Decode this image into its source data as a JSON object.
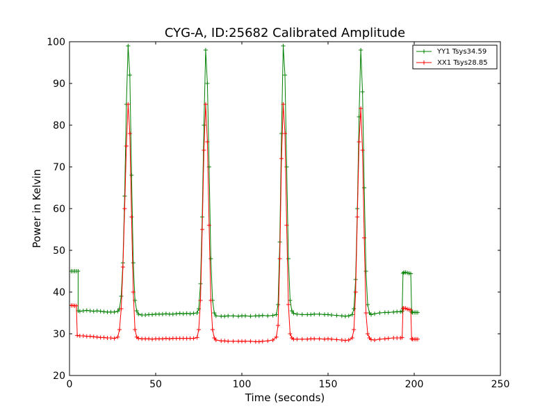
{
  "chart_data": {
    "type": "line",
    "title": "CYG-A, ID:25682 Calibrated Amplitude",
    "xlabel": "Time (seconds)",
    "ylabel": "Power in Kelvin",
    "xlim": [
      0,
      250
    ],
    "ylim": [
      20,
      100
    ],
    "xticks": [
      0,
      50,
      100,
      150,
      200,
      250
    ],
    "yticks": [
      20,
      30,
      40,
      50,
      60,
      70,
      80,
      90,
      100
    ],
    "grid": false,
    "legend_position": "top-right",
    "marker": "+",
    "series": [
      {
        "name": "YY1 Tsys34.59",
        "color": "#008000",
        "points": [
          [
            0,
            45
          ],
          [
            1,
            45
          ],
          [
            2,
            45
          ],
          [
            3,
            45
          ],
          [
            4,
            45
          ],
          [
            5,
            45
          ],
          [
            5,
            35.5
          ],
          [
            6,
            35.4
          ],
          [
            8,
            35.5
          ],
          [
            10,
            35.6
          ],
          [
            12,
            35.5
          ],
          [
            14,
            35.4
          ],
          [
            16,
            35.5
          ],
          [
            18,
            35.4
          ],
          [
            20,
            35.3
          ],
          [
            22,
            35.2
          ],
          [
            24,
            35.2
          ],
          [
            26,
            35.2
          ],
          [
            28,
            35.4
          ],
          [
            29,
            36
          ],
          [
            30,
            39
          ],
          [
            31,
            47
          ],
          [
            32,
            63
          ],
          [
            33,
            85
          ],
          [
            34,
            99
          ],
          [
            35,
            92
          ],
          [
            36,
            68
          ],
          [
            37,
            47
          ],
          [
            38,
            38
          ],
          [
            39,
            35.5
          ],
          [
            40,
            34.7
          ],
          [
            42,
            34.5
          ],
          [
            44,
            34.5
          ],
          [
            46,
            34.6
          ],
          [
            48,
            34.6
          ],
          [
            50,
            34.7
          ],
          [
            52,
            34.7
          ],
          [
            54,
            34.7
          ],
          [
            56,
            34.8
          ],
          [
            58,
            34.7
          ],
          [
            60,
            34.7
          ],
          [
            62,
            34.8
          ],
          [
            64,
            34.9
          ],
          [
            66,
            34.8
          ],
          [
            68,
            34.9
          ],
          [
            70,
            34.8
          ],
          [
            72,
            34.9
          ],
          [
            74,
            35
          ],
          [
            75,
            36
          ],
          [
            76,
            42
          ],
          [
            77,
            58
          ],
          [
            78,
            80
          ],
          [
            79,
            98
          ],
          [
            80,
            90
          ],
          [
            81,
            70
          ],
          [
            82,
            48
          ],
          [
            83,
            38
          ],
          [
            84,
            35
          ],
          [
            85,
            34.3
          ],
          [
            88,
            34.2
          ],
          [
            90,
            34.2
          ],
          [
            92,
            34.3
          ],
          [
            95,
            34.3
          ],
          [
            98,
            34.2
          ],
          [
            100,
            34.3
          ],
          [
            102,
            34.3
          ],
          [
            105,
            34.2
          ],
          [
            108,
            34.3
          ],
          [
            110,
            34.3
          ],
          [
            112,
            34.4
          ],
          [
            115,
            34.3
          ],
          [
            118,
            34.4
          ],
          [
            120,
            34.6
          ],
          [
            121,
            37
          ],
          [
            122,
            52
          ],
          [
            123,
            78
          ],
          [
            124,
            99
          ],
          [
            125,
            92
          ],
          [
            126,
            70
          ],
          [
            127,
            48
          ],
          [
            128,
            38
          ],
          [
            129,
            35.5
          ],
          [
            130,
            34.9
          ],
          [
            132,
            34.7
          ],
          [
            135,
            34.6
          ],
          [
            138,
            34.6
          ],
          [
            140,
            34.6
          ],
          [
            142,
            34.7
          ],
          [
            145,
            34.7
          ],
          [
            148,
            34.6
          ],
          [
            150,
            34.6
          ],
          [
            152,
            34.5
          ],
          [
            155,
            34.4
          ],
          [
            158,
            34.3
          ],
          [
            160,
            34.2
          ],
          [
            162,
            34.3
          ],
          [
            164,
            34.6
          ],
          [
            165,
            36
          ],
          [
            166,
            43
          ],
          [
            167,
            60
          ],
          [
            168,
            82
          ],
          [
            169,
            98
          ],
          [
            170,
            88
          ],
          [
            171,
            65
          ],
          [
            172,
            45
          ],
          [
            173,
            37
          ],
          [
            174,
            35
          ],
          [
            175,
            34.6
          ],
          [
            177,
            34.8
          ],
          [
            180,
            35
          ],
          [
            183,
            35.1
          ],
          [
            185,
            35.1
          ],
          [
            188,
            35.2
          ],
          [
            190,
            35.3
          ],
          [
            192,
            35.3
          ],
          [
            193,
            35.4
          ],
          [
            193.5,
            44.5
          ],
          [
            194,
            44.7
          ],
          [
            195,
            44.7
          ],
          [
            196,
            44.6
          ],
          [
            197,
            44.5
          ],
          [
            198,
            44.4
          ],
          [
            198.5,
            35.2
          ],
          [
            199,
            35.1
          ],
          [
            200,
            35.1
          ],
          [
            201,
            35.1
          ],
          [
            202,
            35.1
          ]
        ]
      },
      {
        "name": "XX1 Tsys28.85",
        "color": "#ff0000",
        "points": [
          [
            0,
            36.8
          ],
          [
            1,
            36.8
          ],
          [
            2,
            36.8
          ],
          [
            3,
            36.7
          ],
          [
            4,
            36.7
          ],
          [
            4.5,
            29.6
          ],
          [
            6,
            29.5
          ],
          [
            8,
            29.5
          ],
          [
            10,
            29.4
          ],
          [
            12,
            29.4
          ],
          [
            14,
            29.3
          ],
          [
            16,
            29.2
          ],
          [
            18,
            29.1
          ],
          [
            20,
            29.1
          ],
          [
            22,
            29.0
          ],
          [
            24,
            29.0
          ],
          [
            26,
            28.9
          ],
          [
            28,
            29.2
          ],
          [
            29,
            31
          ],
          [
            30,
            36
          ],
          [
            31,
            46
          ],
          [
            32,
            60
          ],
          [
            33,
            75
          ],
          [
            34,
            85
          ],
          [
            35,
            78
          ],
          [
            36,
            58
          ],
          [
            37,
            40
          ],
          [
            38,
            31
          ],
          [
            39,
            29.2
          ],
          [
            40,
            28.9
          ],
          [
            42,
            28.8
          ],
          [
            44,
            28.8
          ],
          [
            46,
            28.8
          ],
          [
            48,
            28.7
          ],
          [
            50,
            28.8
          ],
          [
            52,
            28.8
          ],
          [
            54,
            28.8
          ],
          [
            56,
            28.9
          ],
          [
            58,
            28.8
          ],
          [
            60,
            28.9
          ],
          [
            62,
            28.9
          ],
          [
            64,
            28.9
          ],
          [
            66,
            28.9
          ],
          [
            68,
            28.9
          ],
          [
            70,
            28.9
          ],
          [
            72,
            28.9
          ],
          [
            74,
            29.1
          ],
          [
            75,
            31
          ],
          [
            76,
            38
          ],
          [
            77,
            55
          ],
          [
            78,
            74
          ],
          [
            79,
            85
          ],
          [
            80,
            76
          ],
          [
            81,
            56
          ],
          [
            82,
            38
          ],
          [
            83,
            31
          ],
          [
            84,
            29
          ],
          [
            85,
            28.5
          ],
          [
            88,
            28.3
          ],
          [
            90,
            28.3
          ],
          [
            92,
            28.2
          ],
          [
            95,
            28.2
          ],
          [
            98,
            28.2
          ],
          [
            100,
            28.2
          ],
          [
            102,
            28.2
          ],
          [
            105,
            28.2
          ],
          [
            108,
            28.1
          ],
          [
            110,
            28.1
          ],
          [
            112,
            28.2
          ],
          [
            115,
            28.3
          ],
          [
            118,
            28.5
          ],
          [
            120,
            29.2
          ],
          [
            121,
            32
          ],
          [
            122,
            48
          ],
          [
            123,
            72
          ],
          [
            124,
            85
          ],
          [
            125,
            78
          ],
          [
            126,
            56
          ],
          [
            127,
            37
          ],
          [
            128,
            30
          ],
          [
            129,
            29
          ],
          [
            130,
            28.7
          ],
          [
            132,
            28.7
          ],
          [
            135,
            28.7
          ],
          [
            138,
            28.7
          ],
          [
            140,
            28.8
          ],
          [
            142,
            28.8
          ],
          [
            145,
            28.8
          ],
          [
            148,
            28.7
          ],
          [
            150,
            28.8
          ],
          [
            152,
            28.7
          ],
          [
            155,
            28.6
          ],
          [
            158,
            28.5
          ],
          [
            160,
            28.4
          ],
          [
            162,
            28.5
          ],
          [
            164,
            29
          ],
          [
            165,
            31
          ],
          [
            166,
            40
          ],
          [
            167,
            58
          ],
          [
            168,
            76
          ],
          [
            169,
            84
          ],
          [
            170,
            74
          ],
          [
            171,
            53
          ],
          [
            172,
            35
          ],
          [
            173,
            30
          ],
          [
            174,
            29
          ],
          [
            175,
            28.6
          ],
          [
            177,
            28.5
          ],
          [
            180,
            28.7
          ],
          [
            183,
            28.8
          ],
          [
            185,
            28.9
          ],
          [
            188,
            29
          ],
          [
            190,
            29
          ],
          [
            192,
            29
          ],
          [
            193,
            29.1
          ],
          [
            193.5,
            36.1
          ],
          [
            194,
            36.1
          ],
          [
            195,
            36.1
          ],
          [
            196,
            35.9
          ],
          [
            197,
            35.8
          ],
          [
            198,
            35.7
          ],
          [
            198.5,
            28.8
          ],
          [
            199,
            28.7
          ],
          [
            200,
            28.7
          ],
          [
            201,
            28.7
          ],
          [
            202,
            28.7
          ]
        ]
      }
    ]
  }
}
